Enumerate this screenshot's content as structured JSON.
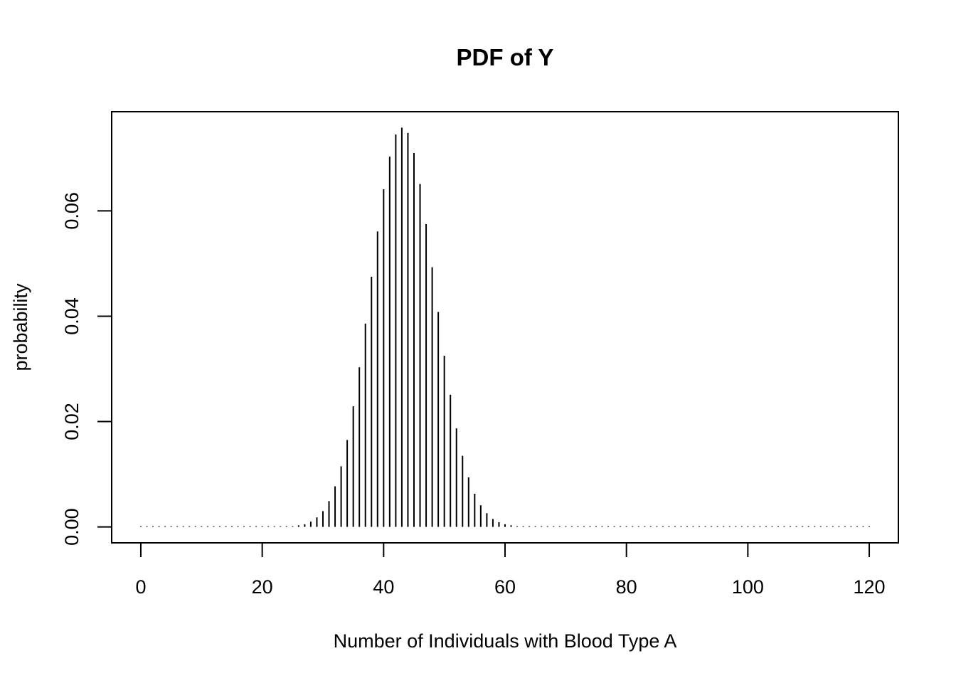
{
  "chart_data": {
    "type": "stem",
    "title": "PDF of Y",
    "xlabel": "Number of Individuals with Blood Type A",
    "ylabel": "probability",
    "color": "#000000",
    "x": [
      0,
      1,
      2,
      3,
      4,
      5,
      6,
      7,
      8,
      9,
      10,
      11,
      12,
      13,
      14,
      15,
      16,
      17,
      18,
      19,
      20,
      21,
      22,
      23,
      24,
      25,
      26,
      27,
      28,
      29,
      30,
      31,
      32,
      33,
      34,
      35,
      36,
      37,
      38,
      39,
      40,
      41,
      42,
      43,
      44,
      45,
      46,
      47,
      48,
      49,
      50,
      51,
      52,
      53,
      54,
      55,
      56,
      57,
      58,
      59,
      60,
      61,
      62,
      63,
      64,
      65,
      66,
      67,
      68,
      69,
      70,
      71,
      72,
      73,
      74,
      75,
      76,
      77,
      78,
      79,
      80,
      81,
      82,
      83,
      84,
      85,
      86,
      87,
      88,
      89,
      90,
      91,
      92,
      93,
      94,
      95,
      96,
      97,
      98,
      99,
      100,
      101,
      102,
      103,
      104,
      105,
      106,
      107,
      108,
      109,
      110,
      111,
      112,
      113,
      114,
      115,
      116,
      117,
      118,
      119,
      120
    ],
    "values": [
      0,
      0,
      0,
      0,
      0,
      0,
      0,
      0,
      0,
      0,
      0,
      0,
      0,
      0,
      0,
      0,
      0,
      0,
      0,
      0,
      0,
      0,
      0,
      0,
      0.0001,
      0.0001,
      0.0003,
      0.0005,
      0.001,
      0.0018,
      0.003,
      0.0049,
      0.0077,
      0.0115,
      0.0165,
      0.0229,
      0.0303,
      0.0386,
      0.0475,
      0.0561,
      0.0641,
      0.0703,
      0.0745,
      0.0758,
      0.0748,
      0.071,
      0.0651,
      0.0575,
      0.0493,
      0.0408,
      0.0325,
      0.0251,
      0.0187,
      0.0135,
      0.0094,
      0.0063,
      0.0041,
      0.0026,
      0.0015,
      0.0009,
      0.0005,
      0.0003,
      0.0001,
      0.0001,
      0,
      0,
      0,
      0,
      0,
      0,
      0,
      0,
      0,
      0,
      0,
      0,
      0,
      0,
      0,
      0,
      0,
      0,
      0,
      0,
      0,
      0,
      0,
      0,
      0,
      0,
      0,
      0,
      0,
      0,
      0,
      0,
      0,
      0,
      0,
      0,
      0,
      0,
      0,
      0,
      0,
      0,
      0,
      0,
      0,
      0,
      0,
      0,
      0,
      0,
      0,
      0,
      0,
      0,
      0,
      0,
      0
    ],
    "xlim": [
      -4.8,
      124.8
    ],
    "xticks": [
      0,
      20,
      40,
      60,
      80,
      100,
      120
    ],
    "ylim": [
      -0.00303,
      0.07883
    ],
    "yticks": [
      {
        "value": 0,
        "label": "0.00"
      },
      0.02,
      0.04,
      0.06
    ]
  }
}
